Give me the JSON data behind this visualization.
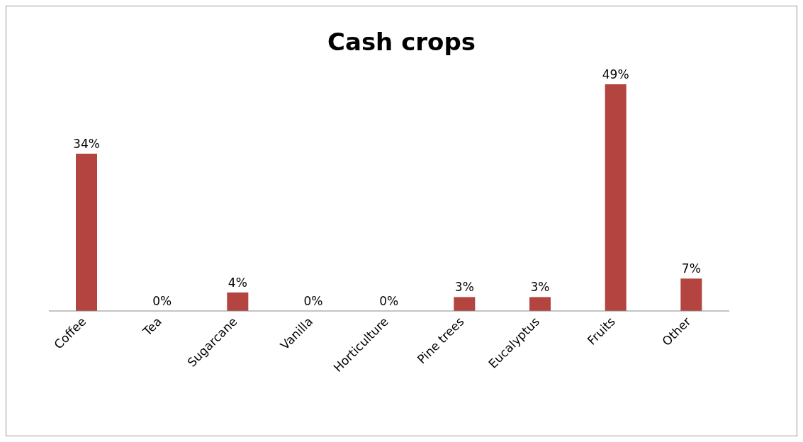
{
  "chart_data": {
    "type": "bar",
    "title": "Cash crops",
    "categories": [
      "Coffee",
      "Tea",
      "Sugarcane",
      "Vanilla",
      "Horticulture",
      "Pine trees",
      "Eucalyptus",
      "Fruits",
      "Other"
    ],
    "values": [
      34,
      0,
      4,
      0,
      0,
      3,
      3,
      49,
      7
    ],
    "value_labels": [
      "34%",
      "0%",
      "4%",
      "0%",
      "0%",
      "3%",
      "3%",
      "49%",
      "7%"
    ],
    "color": "#b3443f",
    "grid": false,
    "legend": false
  }
}
